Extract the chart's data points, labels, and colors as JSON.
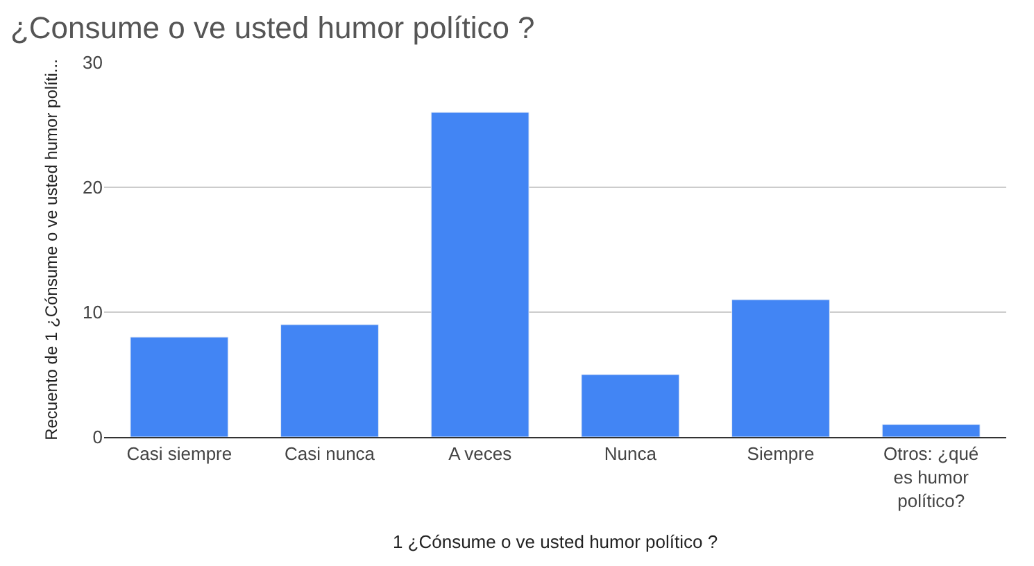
{
  "chart_data": {
    "type": "bar",
    "title": "¿Consume o ve usted humor político ?",
    "xlabel": "1 ¿Cónsume o ve usted humor político ?",
    "ylabel": "Recuento de 1 ¿Cónsume o ve usted humor políti...",
    "categories": [
      "Casi siempre",
      "Casi nunca",
      "A veces",
      "Nunca",
      "Siempre",
      "Otros: ¿qué es humor político?"
    ],
    "values": [
      8,
      9,
      26,
      5,
      11,
      1
    ],
    "color": "#4285f4",
    "ylim": [
      0,
      30
    ],
    "yticks": [
      0,
      10,
      20,
      30
    ],
    "grid": "y"
  }
}
